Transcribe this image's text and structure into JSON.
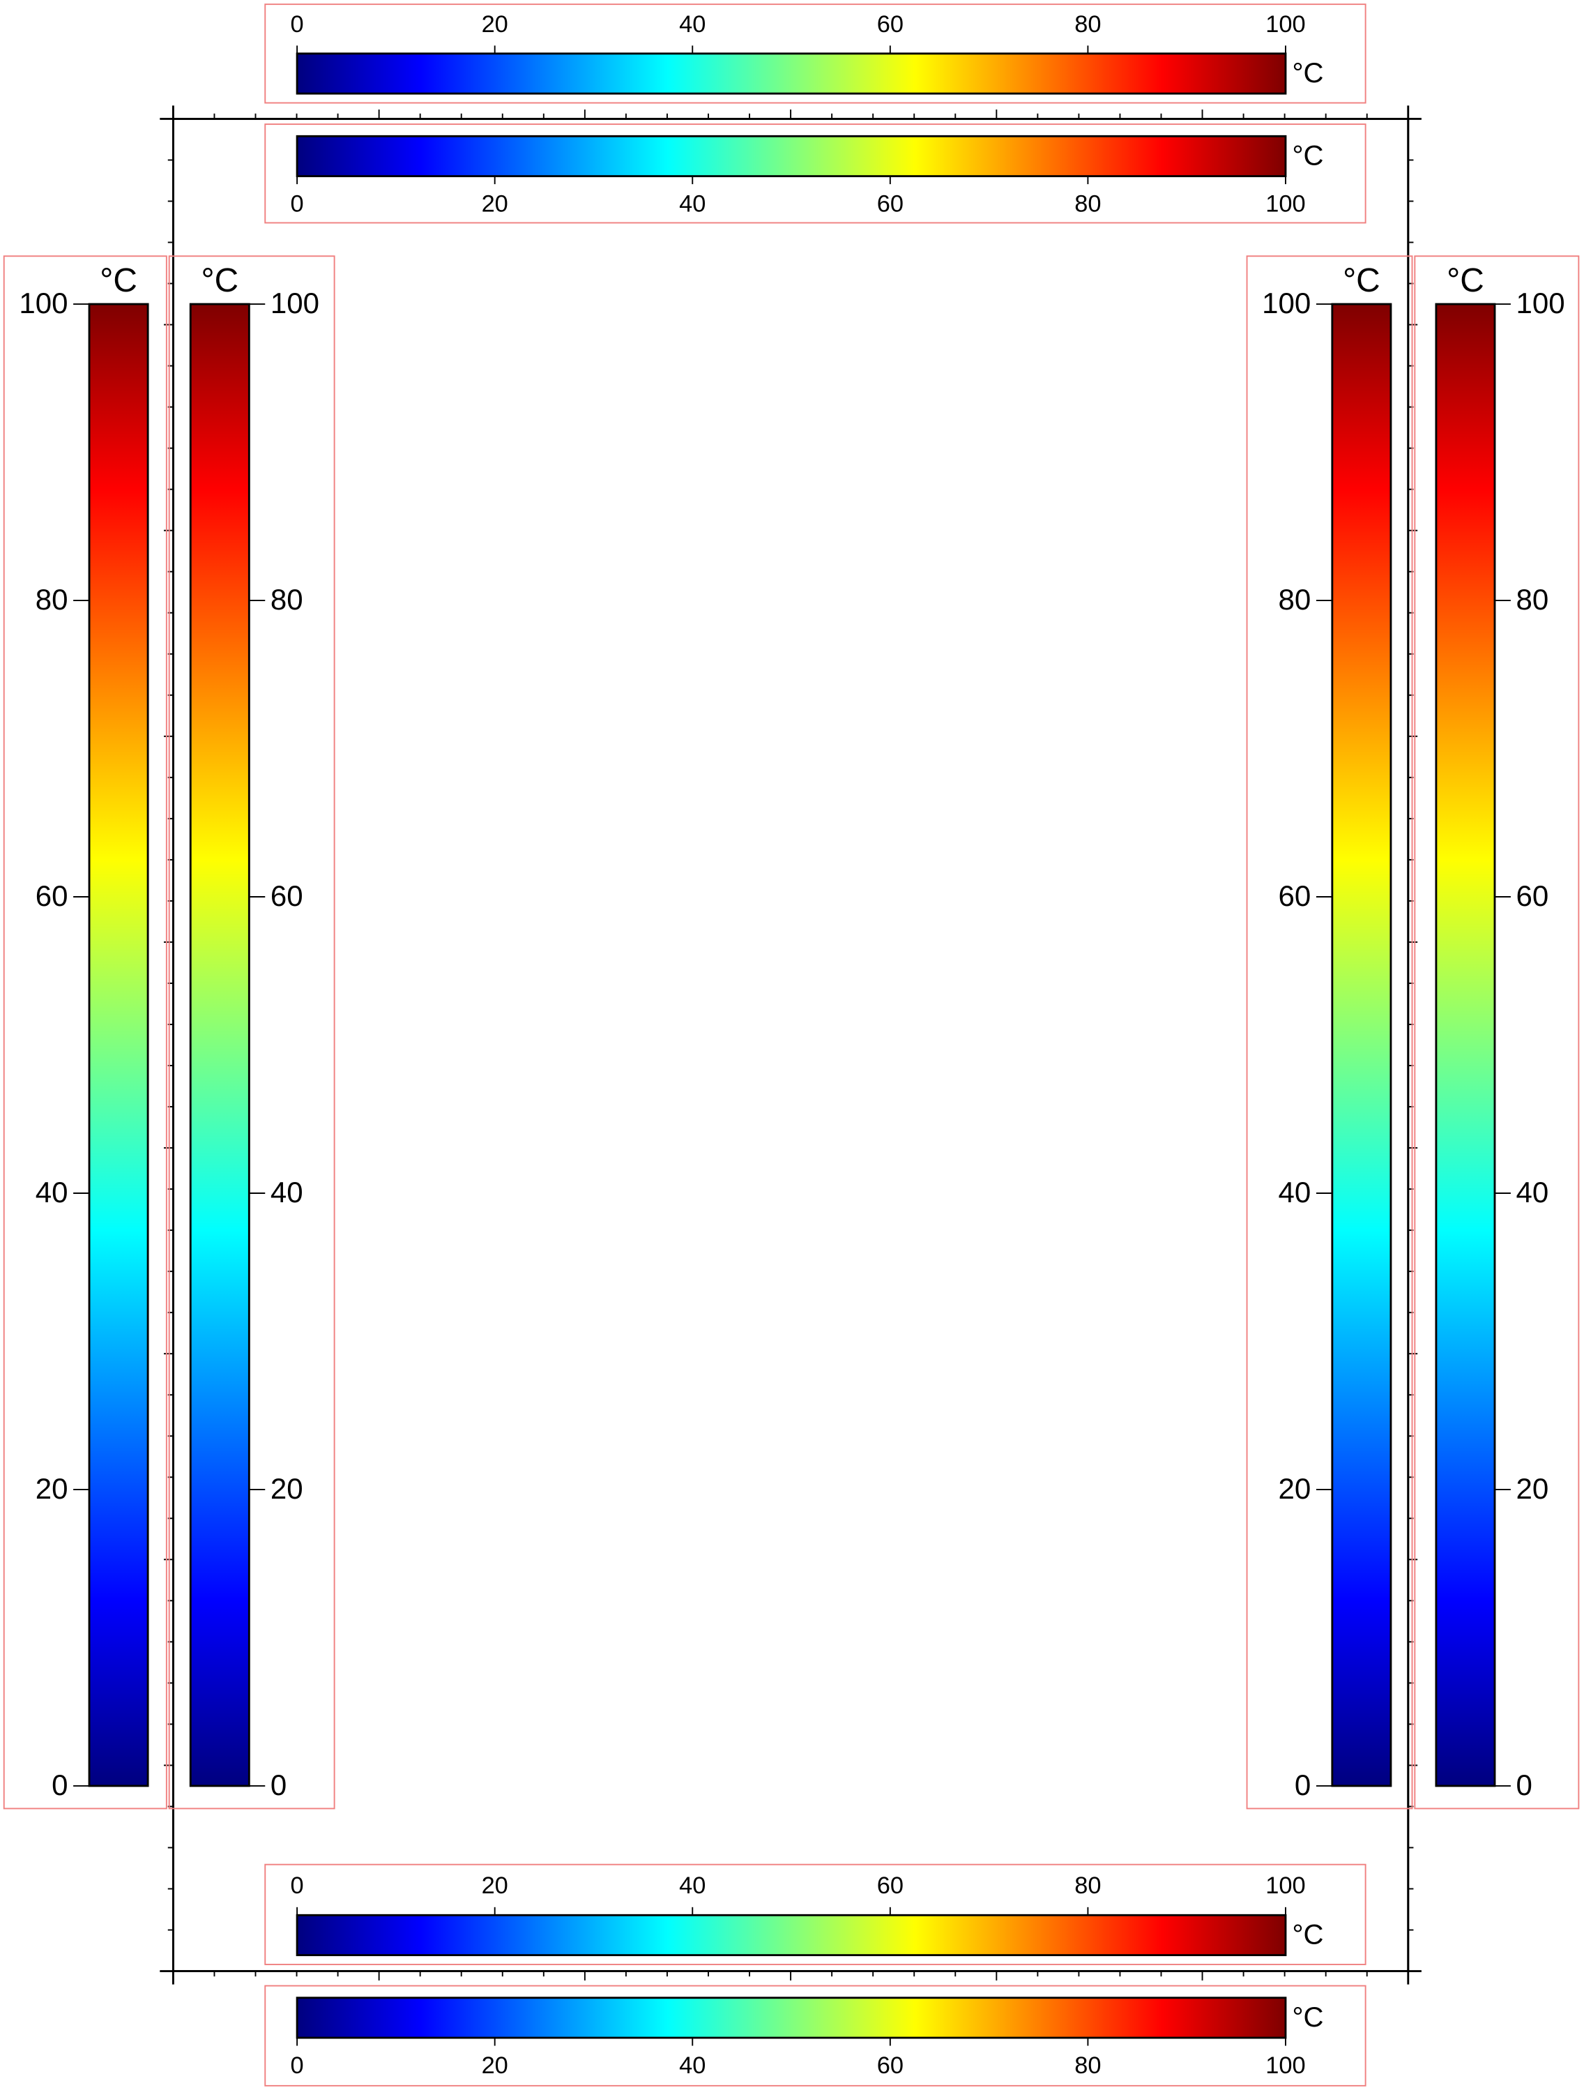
{
  "chart_data": [
    {
      "type": "colorbar",
      "location": "top-outside",
      "orientation": "horizontal",
      "label": "°C",
      "lim": [
        0,
        100
      ],
      "ticks": [
        0,
        20,
        40,
        60,
        80,
        100
      ],
      "colors": [
        "#00007f",
        "#0000ff",
        "#00ffff",
        "#ffff00",
        "#ff0000",
        "#7f0000"
      ]
    },
    {
      "type": "colorbar",
      "location": "top-inside",
      "orientation": "horizontal",
      "label": "°C",
      "lim": [
        0,
        100
      ],
      "ticks": [
        0,
        20,
        40,
        60,
        80,
        100
      ],
      "colors": [
        "#00007f",
        "#0000ff",
        "#00ffff",
        "#ffff00",
        "#ff0000",
        "#7f0000"
      ]
    },
    {
      "type": "colorbar",
      "location": "left-outside",
      "orientation": "vertical",
      "label": "°C",
      "lim": [
        0,
        100
      ],
      "ticks": [
        0,
        20,
        40,
        60,
        80,
        100
      ],
      "colors": [
        "#00007f",
        "#0000ff",
        "#00ffff",
        "#ffff00",
        "#ff0000",
        "#7f0000"
      ]
    },
    {
      "type": "colorbar",
      "location": "left-inside",
      "orientation": "vertical",
      "label": "°C",
      "lim": [
        0,
        100
      ],
      "ticks": [
        0,
        20,
        40,
        60,
        80,
        100
      ],
      "colors": [
        "#00007f",
        "#0000ff",
        "#00ffff",
        "#ffff00",
        "#ff0000",
        "#7f0000"
      ]
    },
    {
      "type": "colorbar",
      "location": "right-inside",
      "orientation": "vertical",
      "label": "°C",
      "lim": [
        0,
        100
      ],
      "ticks": [
        0,
        20,
        40,
        60,
        80,
        100
      ],
      "colors": [
        "#00007f",
        "#0000ff",
        "#00ffff",
        "#ffff00",
        "#ff0000",
        "#7f0000"
      ]
    },
    {
      "type": "colorbar",
      "location": "right-outside",
      "orientation": "vertical",
      "label": "°C",
      "lim": [
        0,
        100
      ],
      "ticks": [
        0,
        20,
        40,
        60,
        80,
        100
      ],
      "colors": [
        "#00007f",
        "#0000ff",
        "#00ffff",
        "#ffff00",
        "#ff0000",
        "#7f0000"
      ]
    },
    {
      "type": "colorbar",
      "location": "bottom-inside",
      "orientation": "horizontal",
      "label": "°C",
      "lim": [
        0,
        100
      ],
      "ticks": [
        0,
        20,
        40,
        60,
        80,
        100
      ],
      "colors": [
        "#00007f",
        "#0000ff",
        "#00ffff",
        "#ffff00",
        "#ff0000",
        "#7f0000"
      ]
    },
    {
      "type": "colorbar",
      "location": "bottom-outside",
      "orientation": "horizontal",
      "label": "°C",
      "lim": [
        0,
        100
      ],
      "ticks": [
        0,
        20,
        40,
        60,
        80,
        100
      ],
      "colors": [
        "#00007f",
        "#0000ff",
        "#00ffff",
        "#ffff00",
        "#ff0000",
        "#7f0000"
      ]
    }
  ]
}
